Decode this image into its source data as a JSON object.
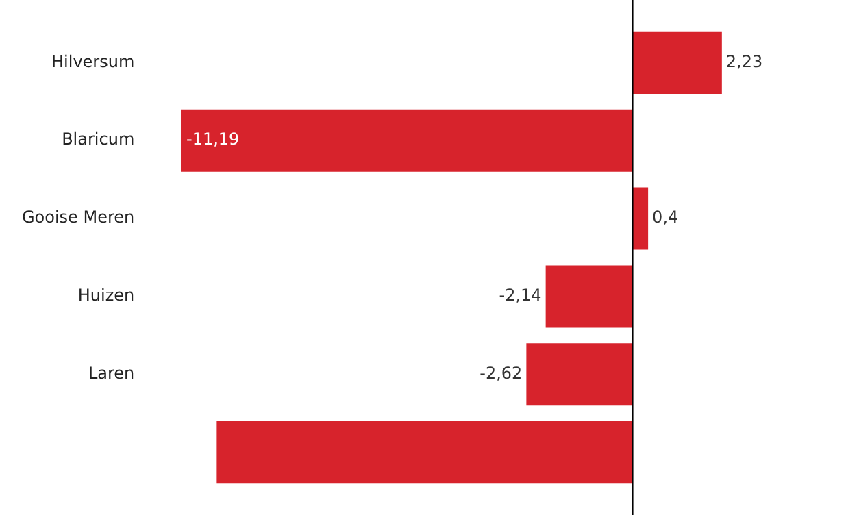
{
  "chart_data": {
    "type": "bar",
    "orientation": "horizontal",
    "categories": [
      "Hilversum",
      "Blaricum",
      "Gooise Meren",
      "Huizen",
      "Laren",
      null
    ],
    "values": [
      2.23,
      -11.19,
      0.4,
      -2.14,
      -2.62,
      -10.3
    ],
    "value_labels": [
      "2,23",
      "-11,19",
      "0,4",
      "-2,14",
      "-2,62",
      null
    ],
    "color": "#d7232c",
    "tick_labels": "y"
  }
}
